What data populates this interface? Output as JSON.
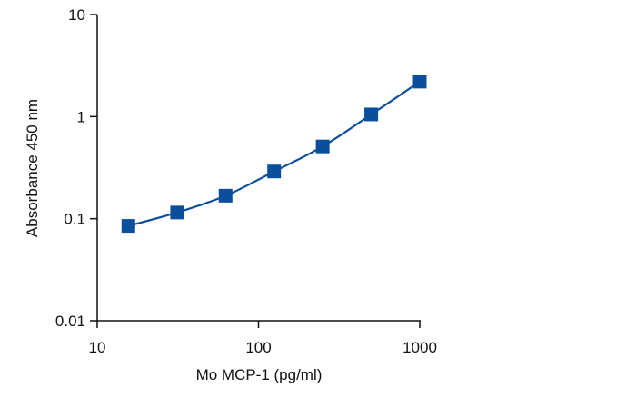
{
  "chart_data": {
    "type": "scatter",
    "title": "",
    "xlabel": "Mo MCP-1 (pg/ml)",
    "ylabel": "Absorbance 450 nm",
    "xscale": "log",
    "yscale": "log",
    "xlim": [
      10,
      1000
    ],
    "ylim": [
      0.01,
      10
    ],
    "x_ticks": [
      {
        "value": 10,
        "label": "10"
      },
      {
        "value": 100,
        "label": "100"
      },
      {
        "value": 1000,
        "label": "1000"
      }
    ],
    "y_ticks": [
      {
        "value": 0.01,
        "label": "0.01"
      },
      {
        "value": 0.1,
        "label": "0.1"
      },
      {
        "value": 1,
        "label": "1"
      },
      {
        "value": 10,
        "label": "10"
      }
    ],
    "grid": false,
    "legend": "none",
    "marker": "square",
    "fit_line": "smooth curve through points",
    "color": "#0b4f9c",
    "series": [
      {
        "x": [
          15.6,
          31.3,
          62.5,
          125,
          250,
          500,
          1000
        ],
        "y": [
          0.085,
          0.115,
          0.168,
          0.29,
          0.51,
          1.05,
          2.2
        ]
      }
    ]
  }
}
